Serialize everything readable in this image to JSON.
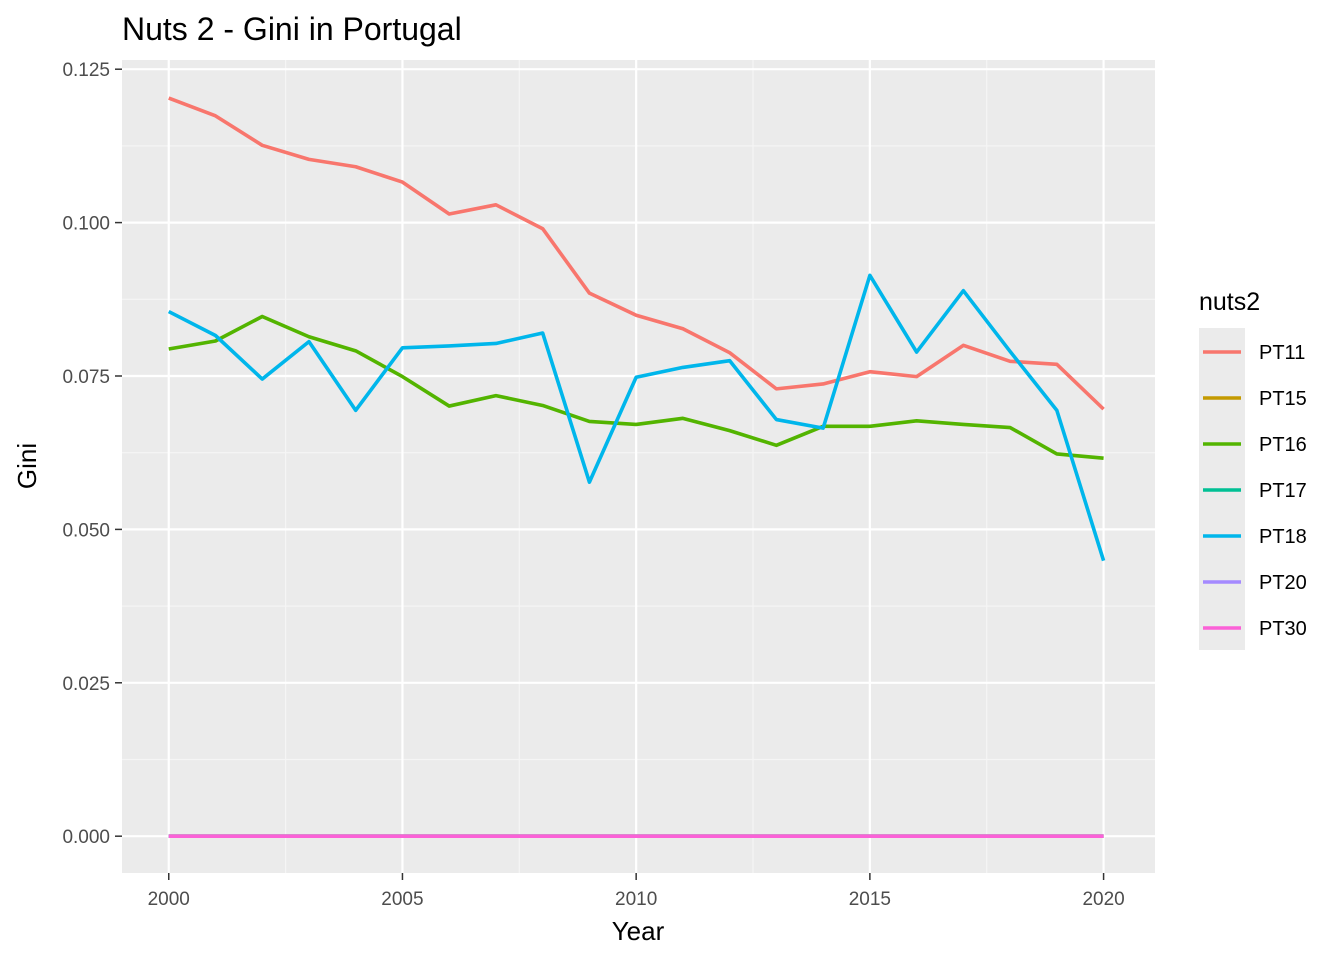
{
  "chart_data": {
    "type": "line",
    "title": "Nuts 2 - Gini in Portugal",
    "xlabel": "Year",
    "ylabel": "Gini",
    "xlim": [
      1999,
      2021.1
    ],
    "ylim": [
      -0.006,
      0.1265
    ],
    "x_ticks": [
      2000,
      2005,
      2010,
      2015,
      2020
    ],
    "x_tick_labels": [
      "2000",
      "2005",
      "2010",
      "2015",
      "2020"
    ],
    "y_ticks": [
      0,
      0.025,
      0.05,
      0.075,
      0.1,
      0.125
    ],
    "y_tick_labels": [
      "0.000",
      "0.025",
      "0.050",
      "0.075",
      "0.100",
      "0.125"
    ],
    "grid": true,
    "legend": {
      "title": "nuts2",
      "position": "right"
    },
    "x": [
      2000,
      2001,
      2002,
      2003,
      2004,
      2005,
      2006,
      2007,
      2008,
      2009,
      2010,
      2011,
      2012,
      2013,
      2014,
      2015,
      2016,
      2017,
      2018,
      2019,
      2020
    ],
    "series": [
      {
        "name": "PT11",
        "color": "#F8766D",
        "values": [
          0.1203,
          0.1174,
          0.1126,
          0.1103,
          0.1091,
          0.1066,
          0.1014,
          0.1029,
          0.099,
          0.0885,
          0.0849,
          0.0827,
          0.0788,
          0.0729,
          0.0737,
          0.0757,
          0.0749,
          0.08,
          0.0774,
          0.0769,
          0.0696
        ]
      },
      {
        "name": "PT15",
        "color": "#C49A00",
        "values": [
          0,
          0,
          0,
          0,
          0,
          0,
          0,
          0,
          0,
          0,
          0,
          0,
          0,
          0,
          0,
          0,
          0,
          0,
          0,
          0,
          0
        ]
      },
      {
        "name": "PT16",
        "color": "#53B400",
        "values": [
          0.0794,
          0.0807,
          0.0847,
          0.0814,
          0.0791,
          0.0749,
          0.0701,
          0.0718,
          0.0702,
          0.0676,
          0.0671,
          0.0681,
          0.0661,
          0.0637,
          0.0668,
          0.0668,
          0.0677,
          0.0671,
          0.0666,
          0.0623,
          0.0616
        ]
      },
      {
        "name": "PT17",
        "color": "#00C094",
        "values": [
          0,
          0,
          0,
          0,
          0,
          0,
          0,
          0,
          0,
          0,
          0,
          0,
          0,
          0,
          0,
          0,
          0,
          0,
          0,
          0,
          0
        ]
      },
      {
        "name": "PT18",
        "color": "#00B6EB",
        "values": [
          0.0855,
          0.0816,
          0.0745,
          0.0806,
          0.0694,
          0.0796,
          0.0799,
          0.0803,
          0.082,
          0.0577,
          0.0748,
          0.0764,
          0.0775,
          0.0679,
          0.0665,
          0.0914,
          0.0789,
          0.0889,
          0.079,
          0.0694,
          0.0449
        ]
      },
      {
        "name": "PT20",
        "color": "#A58AFF",
        "values": [
          0,
          0,
          0,
          0,
          0,
          0,
          0,
          0,
          0,
          0,
          0,
          0,
          0,
          0,
          0,
          0,
          0,
          0,
          0,
          0,
          0
        ]
      },
      {
        "name": "PT30",
        "color": "#FB61D7",
        "values": [
          0,
          0,
          0,
          0,
          0,
          0,
          0,
          0,
          0,
          0,
          0,
          0,
          0,
          0,
          0,
          0,
          0,
          0,
          0,
          0,
          0
        ]
      }
    ],
    "style": {
      "panel_background": "#EBEBEB",
      "grid_major": "#FFFFFF",
      "grid_minor": "#F5F5F5",
      "tick_color": "#333333"
    }
  }
}
